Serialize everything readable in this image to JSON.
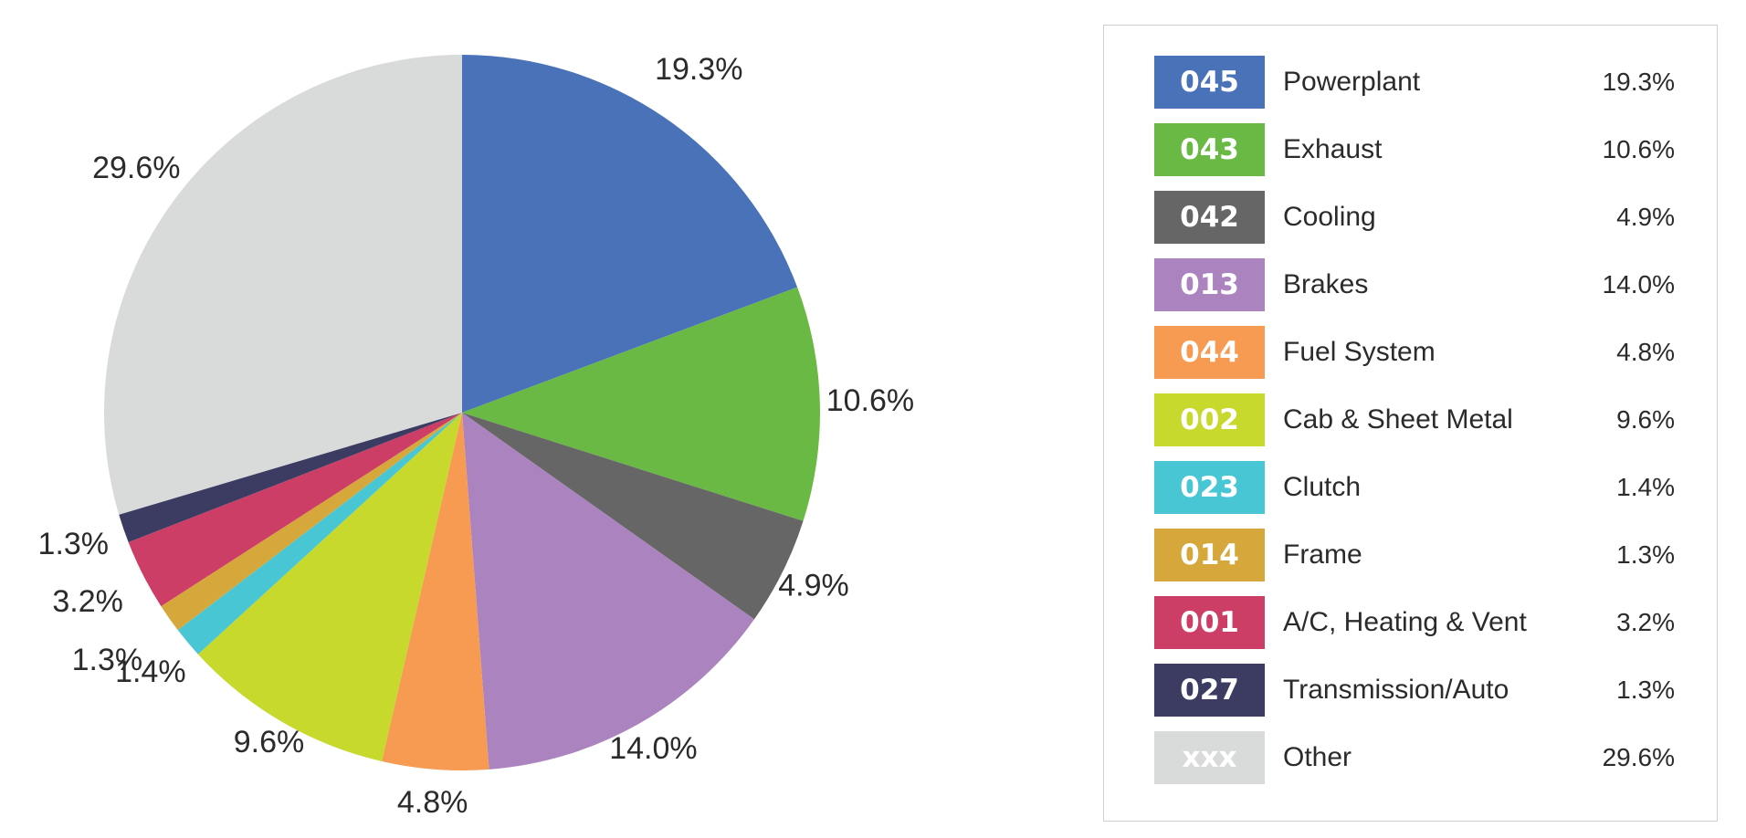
{
  "chart_data": {
    "type": "pie",
    "title": "",
    "start_angle_deg": 0,
    "direction": "clockwise",
    "slices": [
      {
        "code": "045",
        "name": "Powerplant",
        "value": 19.3,
        "label": "19.3%",
        "color": "#4a72b8"
      },
      {
        "code": "043",
        "name": "Exhaust",
        "value": 10.6,
        "label": "10.6%",
        "color": "#69b944"
      },
      {
        "code": "042",
        "name": "Cooling",
        "value": 4.9,
        "label": "4.9%",
        "color": "#666666"
      },
      {
        "code": "013",
        "name": "Brakes",
        "value": 14.0,
        "label": "14.0%",
        "color": "#ab84bf"
      },
      {
        "code": "044",
        "name": "Fuel System",
        "value": 4.8,
        "label": "4.8%",
        "color": "#f79b53"
      },
      {
        "code": "002",
        "name": "Cab & Sheet Metal",
        "value": 9.6,
        "label": "9.6%",
        "color": "#c6d92c"
      },
      {
        "code": "023",
        "name": "Clutch",
        "value": 1.4,
        "label": "1.4%",
        "color": "#49c6d4"
      },
      {
        "code": "014",
        "name": "Frame",
        "value": 1.3,
        "label": "1.3%",
        "color": "#d6a83b"
      },
      {
        "code": "001",
        "name": "A/C, Heating & Vent",
        "value": 3.2,
        "label": "3.2%",
        "color": "#cd3e67"
      },
      {
        "code": "027",
        "name": "Transmission/Auto",
        "value": 1.3,
        "label": "1.3%",
        "color": "#3c3c62"
      },
      {
        "code": "xxx",
        "name": "Other",
        "value": 29.6,
        "label": "29.6%",
        "color": "#d9dada"
      }
    ],
    "legend_placement": "right"
  }
}
